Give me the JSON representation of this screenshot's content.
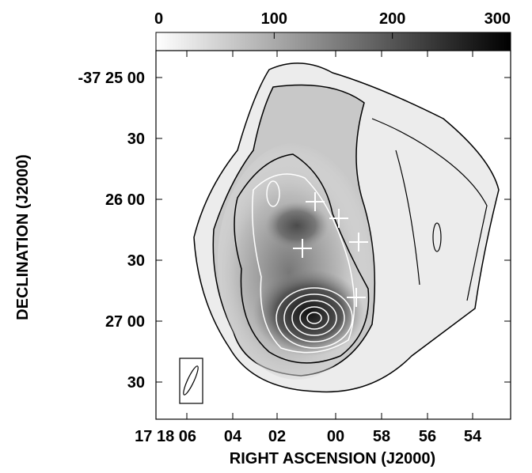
{
  "colorbar": {
    "ticks": [
      0,
      100,
      200,
      300
    ]
  },
  "x_axis": {
    "label": "RIGHT ASCENSION (J2000)",
    "ticks": [
      "17 18 06",
      "04",
      "02",
      "00",
      "58",
      "56",
      "54"
    ]
  },
  "y_axis": {
    "label": "DECLINATION (J2000)",
    "ticks": [
      "-37 25 00",
      "30",
      "26 00",
      "30",
      "27 00",
      "30"
    ]
  }
}
